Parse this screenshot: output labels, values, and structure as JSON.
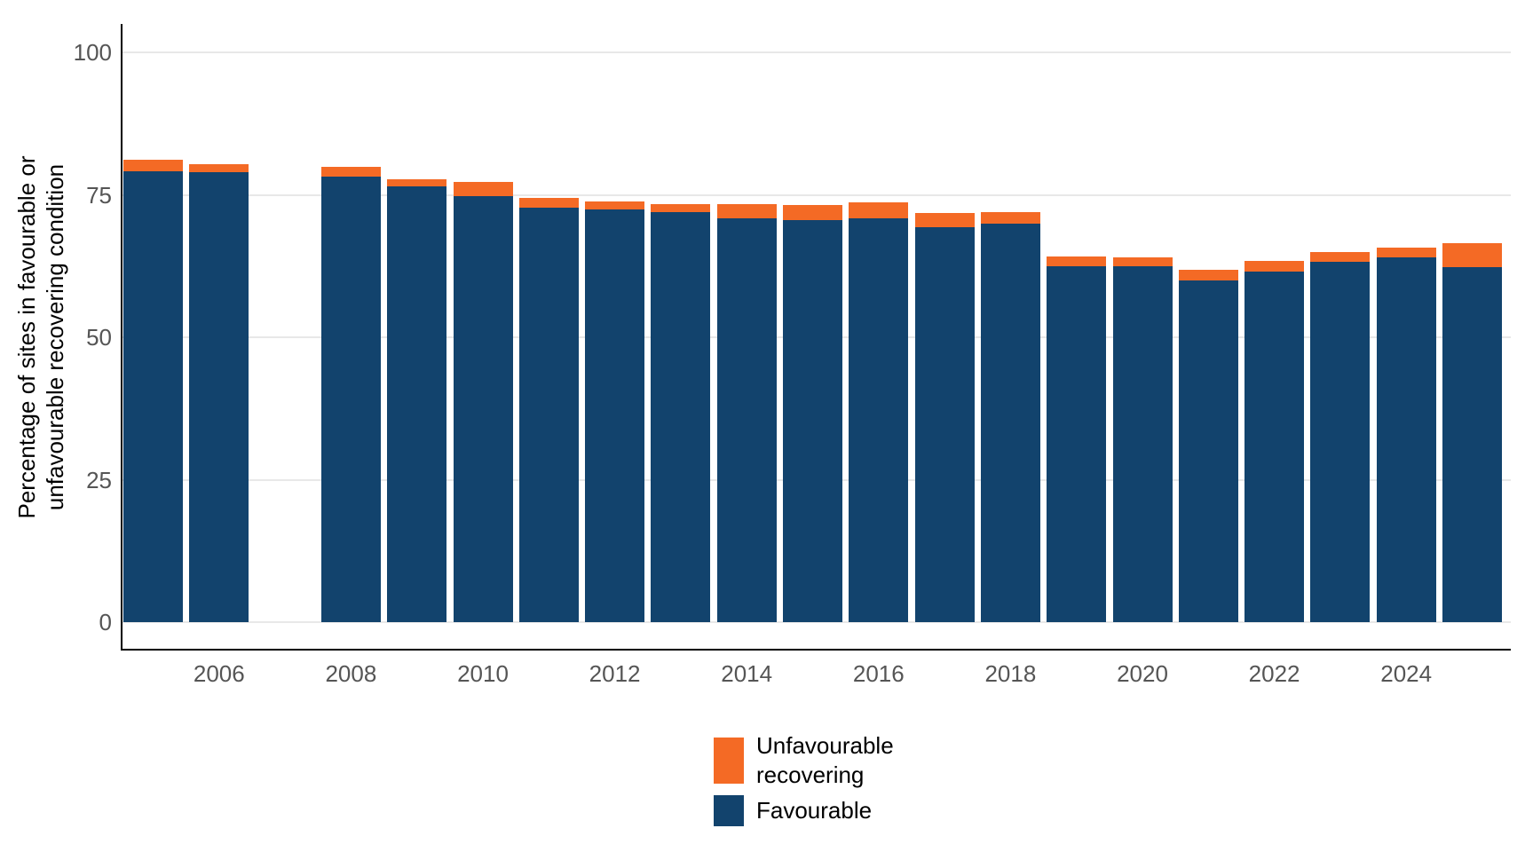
{
  "chart": {
    "y_axis": {
      "title_lines": [
        "Percentage of sites in favourable or",
        "unfavourable recovering condition"
      ],
      "tick_labels": [
        "0",
        "25",
        "50",
        "75",
        "100"
      ]
    },
    "x_axis": {
      "tick_labels": [
        "2006",
        "2008",
        "2010",
        "2012",
        "2014",
        "2016",
        "2018",
        "2020",
        "2022",
        "2024"
      ]
    },
    "legend": {
      "items": [
        {
          "label_lines": [
            "Unfavourable",
            "recovering"
          ],
          "color": "#F46A25"
        },
        {
          "label_lines": [
            "Favourable"
          ],
          "color": "#12436D"
        }
      ]
    },
    "colors": {
      "favourable": "#12436D",
      "unfavourable_recovering": "#F46A25",
      "gridline": "#e8e8e8",
      "axis_text": "#555555",
      "axis_line": "#000000"
    }
  },
  "chart_data": {
    "type": "bar",
    "stacked": true,
    "title": "",
    "xlabel": "",
    "ylabel": "Percentage of sites in favourable or unfavourable recovering condition",
    "ylim": [
      0,
      100
    ],
    "yticks": [
      0,
      25,
      50,
      75,
      100
    ],
    "xticks": [
      2006,
      2008,
      2010,
      2012,
      2014,
      2016,
      2018,
      2020,
      2022,
      2024
    ],
    "grid": "horizontal-major-only",
    "legend_position": "bottom",
    "categories": [
      2005,
      2006,
      2007,
      2008,
      2009,
      2010,
      2011,
      2012,
      2013,
      2014,
      2015,
      2016,
      2017,
      2018,
      2019,
      2020,
      2021,
      2022,
      2023,
      2024,
      2025
    ],
    "missing_categories": [
      2007
    ],
    "series": [
      {
        "name": "Favourable",
        "color": "#12436D",
        "values": [
          79.2,
          78.9,
          null,
          78.2,
          76.5,
          74.7,
          72.8,
          72.5,
          71.9,
          70.8,
          70.6,
          70.8,
          69.3,
          69.9,
          62.5,
          62.5,
          60.0,
          61.6,
          63.2,
          64.0,
          62.3
        ]
      },
      {
        "name": "Unfavourable recovering",
        "color": "#F46A25",
        "values": [
          1.9,
          1.5,
          null,
          1.7,
          1.2,
          2.5,
          1.7,
          1.4,
          1.5,
          2.6,
          2.6,
          2.9,
          2.5,
          2.0,
          1.6,
          1.5,
          1.8,
          1.8,
          1.7,
          1.7,
          4.2
        ]
      }
    ]
  }
}
